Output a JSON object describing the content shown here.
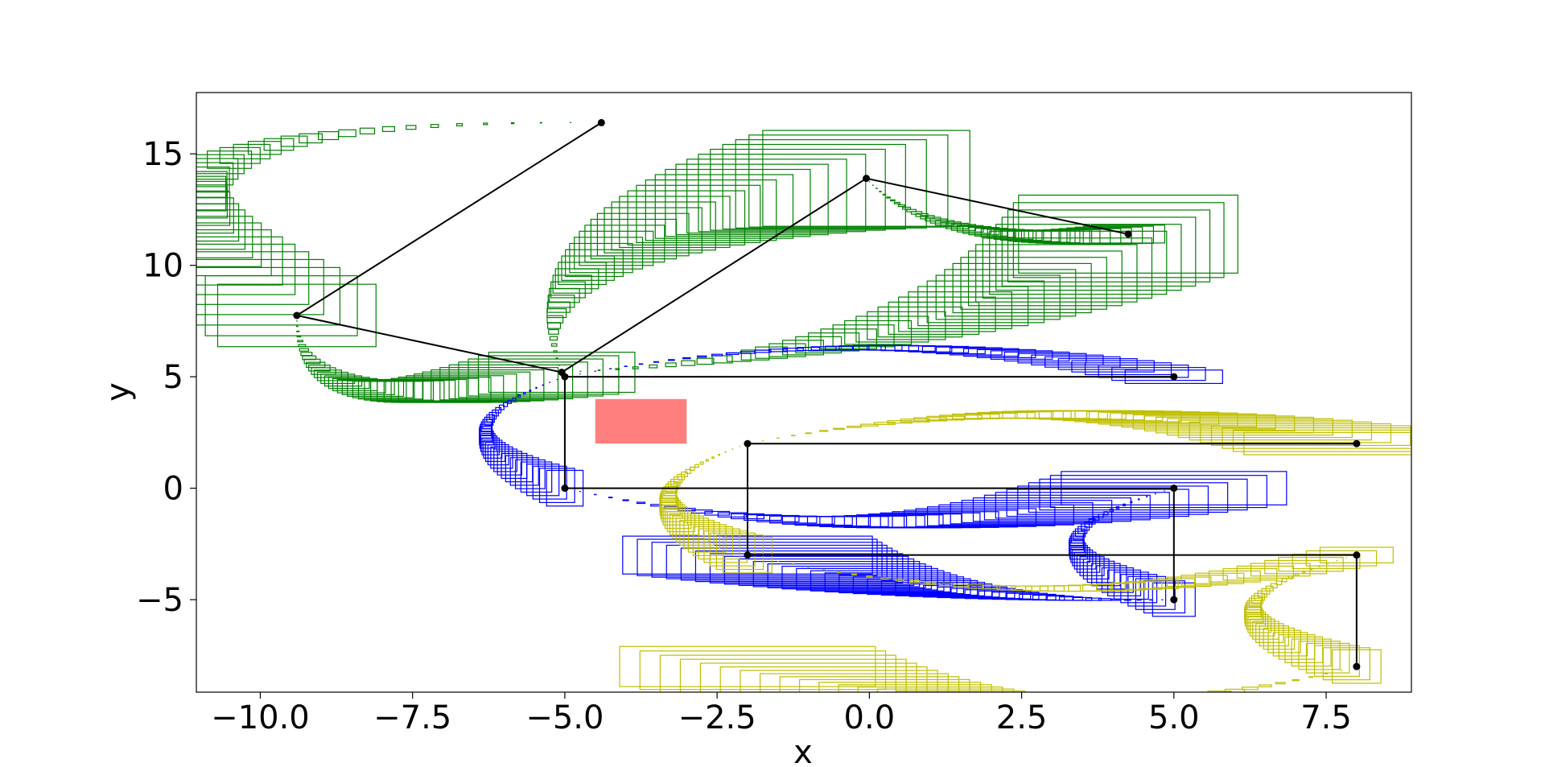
{
  "chart_data": {
    "type": "scatter",
    "title": "",
    "xlabel": "x",
    "ylabel": "y",
    "xlim": [
      -11.05,
      8.9
    ],
    "ylim": [
      -9.15,
      17.75
    ],
    "grid": false,
    "xticks": [
      -10.0,
      -7.5,
      -5.0,
      -2.5,
      0.0,
      2.5,
      5.0,
      7.5
    ],
    "xtick_labels": [
      "−10.0",
      "−7.5",
      "−5.0",
      "−2.5",
      "0.0",
      "2.5",
      "5.0",
      "7.5"
    ],
    "yticks": [
      -5,
      0,
      5,
      10,
      15
    ],
    "ytick_labels": [
      "−5",
      "0",
      "5",
      "10",
      "15"
    ],
    "colors": {
      "green": "#008000",
      "blue": "#0000ff",
      "yellow": "#bfbf00",
      "obstacle": "#ff7f7f",
      "path": "#000000"
    },
    "obstacle": {
      "x": [
        -4.5,
        -3.0
      ],
      "y": [
        2.0,
        4.0
      ]
    },
    "paths": [
      {
        "color": "green",
        "nodes": [
          [
            -4.4,
            16.4
          ],
          [
            -9.4,
            7.75
          ],
          [
            -5.05,
            5.2
          ],
          [
            -0.05,
            13.9
          ],
          [
            4.25,
            11.4
          ]
        ]
      },
      {
        "color": "blue",
        "nodes": [
          [
            5.0,
            5.0
          ],
          [
            -5.0,
            5.0
          ],
          [
            -5.0,
            0.0
          ],
          [
            5.0,
            0.0
          ],
          [
            5.0,
            -5.0
          ]
        ]
      },
      {
        "color": "yellow",
        "nodes": [
          [
            8.0,
            2.0
          ],
          [
            -2.0,
            2.0
          ],
          [
            -2.0,
            -3.0
          ],
          [
            8.0,
            -3.0
          ],
          [
            8.0,
            -8.0
          ]
        ]
      }
    ],
    "series": [
      {
        "color": "green",
        "segments": [
          {
            "from": [
              -4.4,
              16.4
            ],
            "to": [
              -9.4,
              7.75
            ],
            "bulge": -4.5,
            "box_max": [
              2.6,
              2.8
            ]
          },
          {
            "from": [
              -9.4,
              7.75
            ],
            "to": [
              -5.05,
              5.2
            ],
            "bulge": -2.2,
            "box_max": [
              2.4,
              1.8
            ]
          },
          {
            "from": [
              -5.05,
              5.2
            ],
            "to": [
              4.25,
              11.4
            ],
            "bulge": -1.4,
            "box_max": [
              3.6,
              3.5
            ]
          },
          {
            "from": [
              -5.05,
              5.2
            ],
            "to": [
              -0.05,
              13.9
            ],
            "bulge": 2.0,
            "box_max": [
              3.4,
              4.3
            ]
          },
          {
            "from": [
              -0.05,
              13.9
            ],
            "to": [
              4.25,
              11.4
            ],
            "bulge": -1.1,
            "box_max": [
              1.2,
              0.8
            ]
          }
        ]
      },
      {
        "color": "blue",
        "segments": [
          {
            "from": [
              -5.0,
              5.0
            ],
            "to": [
              5.0,
              5.0
            ],
            "bulge": 1.3,
            "box_max": [
              1.6,
              0.6
            ]
          },
          {
            "from": [
              -5.0,
              5.0
            ],
            "to": [
              -5.0,
              0.0
            ],
            "bulge": -1.3,
            "box_max": [
              0.6,
              1.6
            ]
          },
          {
            "from": [
              -5.0,
              0.0
            ],
            "to": [
              5.0,
              0.0
            ],
            "bulge": -1.5,
            "box_max": [
              3.7,
              1.5
            ]
          },
          {
            "from": [
              5.0,
              0.0
            ],
            "to": [
              5.0,
              -5.0
            ],
            "bulge": -1.6,
            "box_max": [
              0.7,
              1.5
            ]
          },
          {
            "from": [
              5.0,
              -5.0
            ],
            "to": [
              -2.0,
              -3.0
            ],
            "bulge": 0.6,
            "box_max": [
              4.1,
              1.7
            ]
          }
        ]
      },
      {
        "color": "yellow",
        "segments": [
          {
            "from": [
              -2.0,
              2.0
            ],
            "to": [
              8.0,
              2.0
            ],
            "bulge": 1.3,
            "box_max": [
              3.7,
              1.0
            ]
          },
          {
            "from": [
              -2.0,
              2.0
            ],
            "to": [
              -2.0,
              -3.0
            ],
            "bulge": -1.3,
            "box_max": [
              0.8,
              1.6
            ]
          },
          {
            "from": [
              -2.0,
              -3.0
            ],
            "to": [
              8.0,
              -3.0
            ],
            "bulge": -1.5,
            "box_max": [
              1.2,
              0.7
            ]
          },
          {
            "from": [
              8.0,
              -3.0
            ],
            "to": [
              8.0,
              -8.0
            ],
            "bulge": -1.7,
            "box_max": [
              0.8,
              1.5
            ]
          },
          {
            "from": [
              8.0,
              -8.0
            ],
            "to": [
              -2.0,
              -8.0
            ],
            "bulge": 1.7,
            "box_max": [
              4.2,
              1.8
            ]
          }
        ]
      }
    ]
  }
}
